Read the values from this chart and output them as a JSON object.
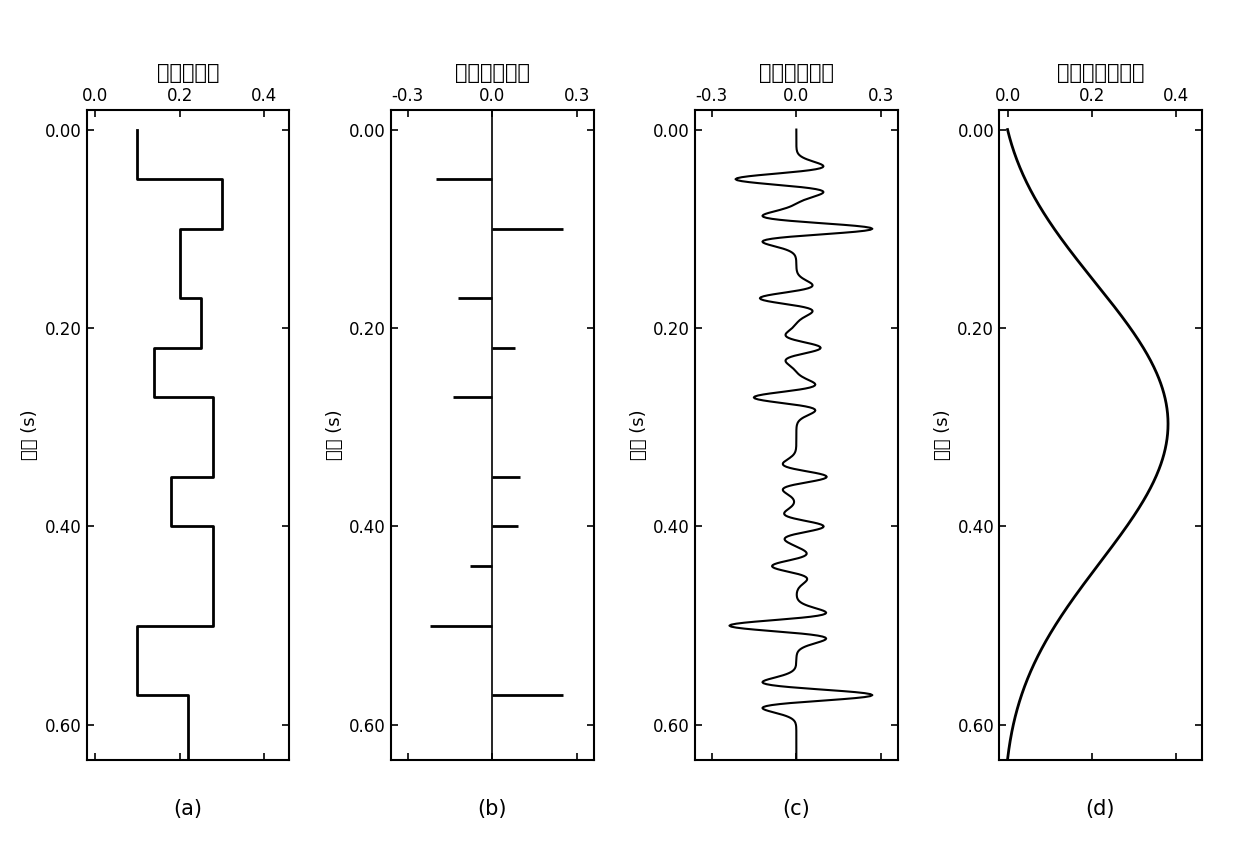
{
  "panel_a": {
    "title": "孔隙度模型",
    "caption": "(a)",
    "ylabel": "时间 (s)",
    "xlim": [
      -0.02,
      0.46
    ],
    "ylim": [
      0.635,
      -0.02
    ],
    "xticks": [
      0.0,
      0.2,
      0.4
    ],
    "yticks": [
      0.0,
      0.2,
      0.4,
      0.6
    ],
    "steps_t": [
      0.0,
      0.05,
      0.05,
      0.1,
      0.1,
      0.17,
      0.17,
      0.22,
      0.22,
      0.27,
      0.27,
      0.35,
      0.35,
      0.4,
      0.4,
      0.5,
      0.5,
      0.57,
      0.57,
      0.635
    ],
    "steps_v": [
      0.1,
      0.1,
      0.3,
      0.3,
      0.2,
      0.2,
      0.25,
      0.25,
      0.14,
      0.14,
      0.28,
      0.28,
      0.18,
      0.18,
      0.28,
      0.28,
      0.1,
      0.1,
      0.22,
      0.22
    ]
  },
  "panel_b": {
    "title": "反射系数模型",
    "caption": "(b)",
    "ylabel": "时间 (s)",
    "xlim": [
      -0.36,
      0.36
    ],
    "ylim": [
      0.635,
      -0.02
    ],
    "xticks": [
      -0.3,
      0.0,
      0.3
    ],
    "yticks": [
      0.0,
      0.2,
      0.4,
      0.6
    ],
    "spikes": [
      {
        "t": 0.05,
        "v": -0.2
      },
      {
        "t": 0.1,
        "v": 0.25
      },
      {
        "t": 0.17,
        "v": -0.12
      },
      {
        "t": 0.22,
        "v": 0.08
      },
      {
        "t": 0.27,
        "v": -0.14
      },
      {
        "t": 0.35,
        "v": 0.1
      },
      {
        "t": 0.4,
        "v": 0.09
      },
      {
        "t": 0.44,
        "v": -0.08
      },
      {
        "t": 0.5,
        "v": -0.22
      },
      {
        "t": 0.57,
        "v": 0.25
      }
    ]
  },
  "panel_c": {
    "title": "合成地震记录",
    "caption": "(c)",
    "ylabel": "时间 (s)",
    "xlim": [
      -0.36,
      0.36
    ],
    "ylim": [
      0.635,
      -0.02
    ],
    "xticks": [
      -0.3,
      0.0,
      0.3
    ],
    "yticks": [
      0.0,
      0.2,
      0.4,
      0.6
    ]
  },
  "panel_d": {
    "title": "初始孔隙度模型",
    "caption": "(d)",
    "ylabel": "时间 (s)",
    "xlim": [
      -0.02,
      0.46
    ],
    "ylim": [
      0.635,
      -0.02
    ],
    "xticks": [
      0.0,
      0.2,
      0.4
    ],
    "yticks": [
      0.0,
      0.2,
      0.4,
      0.6
    ]
  },
  "line_color": "#000000",
  "bg_color": "#ffffff",
  "linewidth": 2.0,
  "fontsize_title": 15,
  "fontsize_tick": 12,
  "fontsize_label": 13,
  "fontsize_caption": 15
}
